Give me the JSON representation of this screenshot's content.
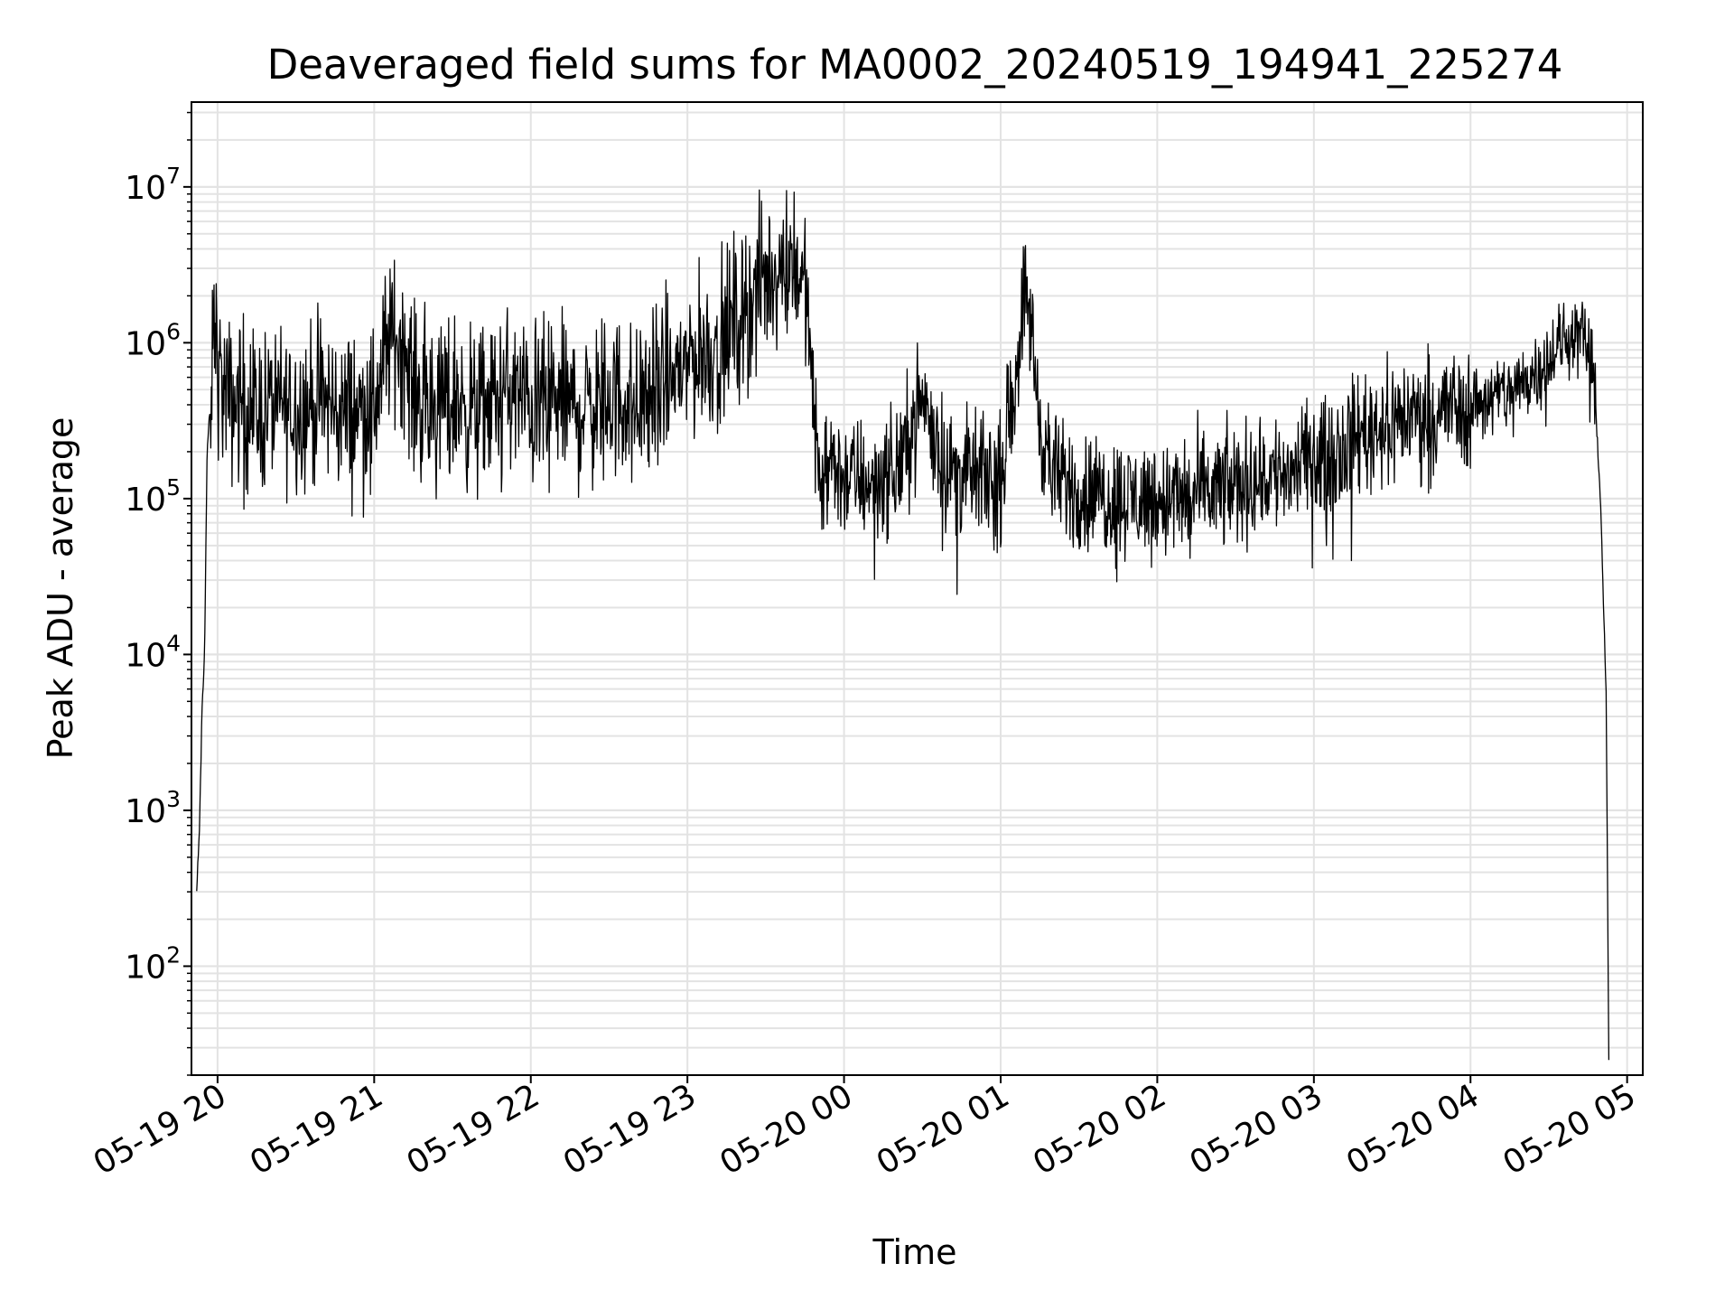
{
  "chart_data": {
    "type": "line",
    "title": "Deaveraged field sums for MA0002_20240519_194941_225274",
    "xlabel": "Time",
    "ylabel": "Peak ADU - average",
    "y_scale": "log",
    "x_axis": "time (hours after 2024-05-19 19:49)",
    "xlim": [
      "05-19 19:50",
      "05-20 05:06"
    ],
    "ylim": [
      20,
      35000000
    ],
    "grid": true,
    "line_color": "#000000",
    "x_ticks": [
      "05-19 20",
      "05-19 21",
      "05-19 22",
      "05-19 23",
      "05-20 00",
      "05-20 01",
      "05-20 02",
      "05-20 03",
      "05-20 04",
      "05-20 05"
    ],
    "y_ticks": [
      {
        "base": "10",
        "exp": "2",
        "value": 100
      },
      {
        "base": "10",
        "exp": "3",
        "value": 1000
      },
      {
        "base": "10",
        "exp": "4",
        "value": 10000
      },
      {
        "base": "10",
        "exp": "5",
        "value": 100000
      },
      {
        "base": "10",
        "exp": "6",
        "value": 1000000
      },
      {
        "base": "10",
        "exp": "7",
        "value": 10000000
      }
    ],
    "series": [
      {
        "x": [
          "05-19 19:52",
          "05-19 19:53",
          "05-19 19:54",
          "05-19 19:55",
          "05-19 19:56",
          "05-19 19:57",
          "05-19 19:58",
          "05-19 19:59",
          "05-19 20:00",
          "05-19 20:02",
          "05-19 20:05",
          "05-19 20:10",
          "05-19 20:15",
          "05-19 20:20",
          "05-19 20:30",
          "05-19 20:40",
          "05-19 20:50",
          "05-19 21:00",
          "05-19 21:05",
          "05-19 21:10",
          "05-19 21:15",
          "05-19 21:20",
          "05-19 21:30",
          "05-19 21:40",
          "05-19 21:50",
          "05-19 22:00",
          "05-19 22:10",
          "05-19 22:20",
          "05-19 22:30",
          "05-19 22:40",
          "05-19 22:50",
          "05-19 23:00",
          "05-19 23:10",
          "05-19 23:20",
          "05-19 23:30",
          "05-19 23:35",
          "05-19 23:40",
          "05-19 23:45",
          "05-19 23:50",
          "05-20 00:00",
          "05-20 00:10",
          "05-20 00:20",
          "05-20 00:30",
          "05-20 00:40",
          "05-20 00:50",
          "05-20 01:00",
          "05-20 01:10",
          "05-20 01:15",
          "05-20 01:20",
          "05-20 01:30",
          "05-20 01:40",
          "05-20 01:50",
          "05-20 02:00",
          "05-20 02:10",
          "05-20 02:20",
          "05-20 02:30",
          "05-20 02:40",
          "05-20 02:50",
          "05-20 03:00",
          "05-20 03:10",
          "05-20 03:20",
          "05-20 03:30",
          "05-20 03:40",
          "05-20 03:50",
          "05-20 04:00",
          "05-20 04:10",
          "05-20 04:20",
          "05-20 04:30",
          "05-20 04:35",
          "05-20 04:40",
          "05-20 04:45",
          "05-20 04:48",
          "05-20 04:50",
          "05-20 04:52",
          "05-20 04:53"
        ],
        "y": [
          300,
          700,
          4000,
          10000,
          200000,
          350000,
          800000,
          1500000,
          700000,
          500000,
          400000,
          450000,
          350000,
          400000,
          380000,
          420000,
          350000,
          400000,
          1000000,
          1100000,
          500000,
          400000,
          450000,
          350000,
          500000,
          400000,
          420000,
          380000,
          450000,
          420000,
          500000,
          800000,
          900000,
          1500000,
          2500000,
          3000000,
          3500000,
          2500000,
          160000,
          140000,
          130000,
          150000,
          450000,
          150000,
          140000,
          130000,
          2500000,
          300000,
          140000,
          110000,
          105000,
          100000,
          100000,
          100000,
          110000,
          120000,
          140000,
          150000,
          170000,
          220000,
          280000,
          320000,
          350000,
          380000,
          400000,
          450000,
          550000,
          800000,
          1000000,
          1200000,
          1000000,
          400000,
          80000,
          5000,
          25
        ]
      }
    ]
  }
}
